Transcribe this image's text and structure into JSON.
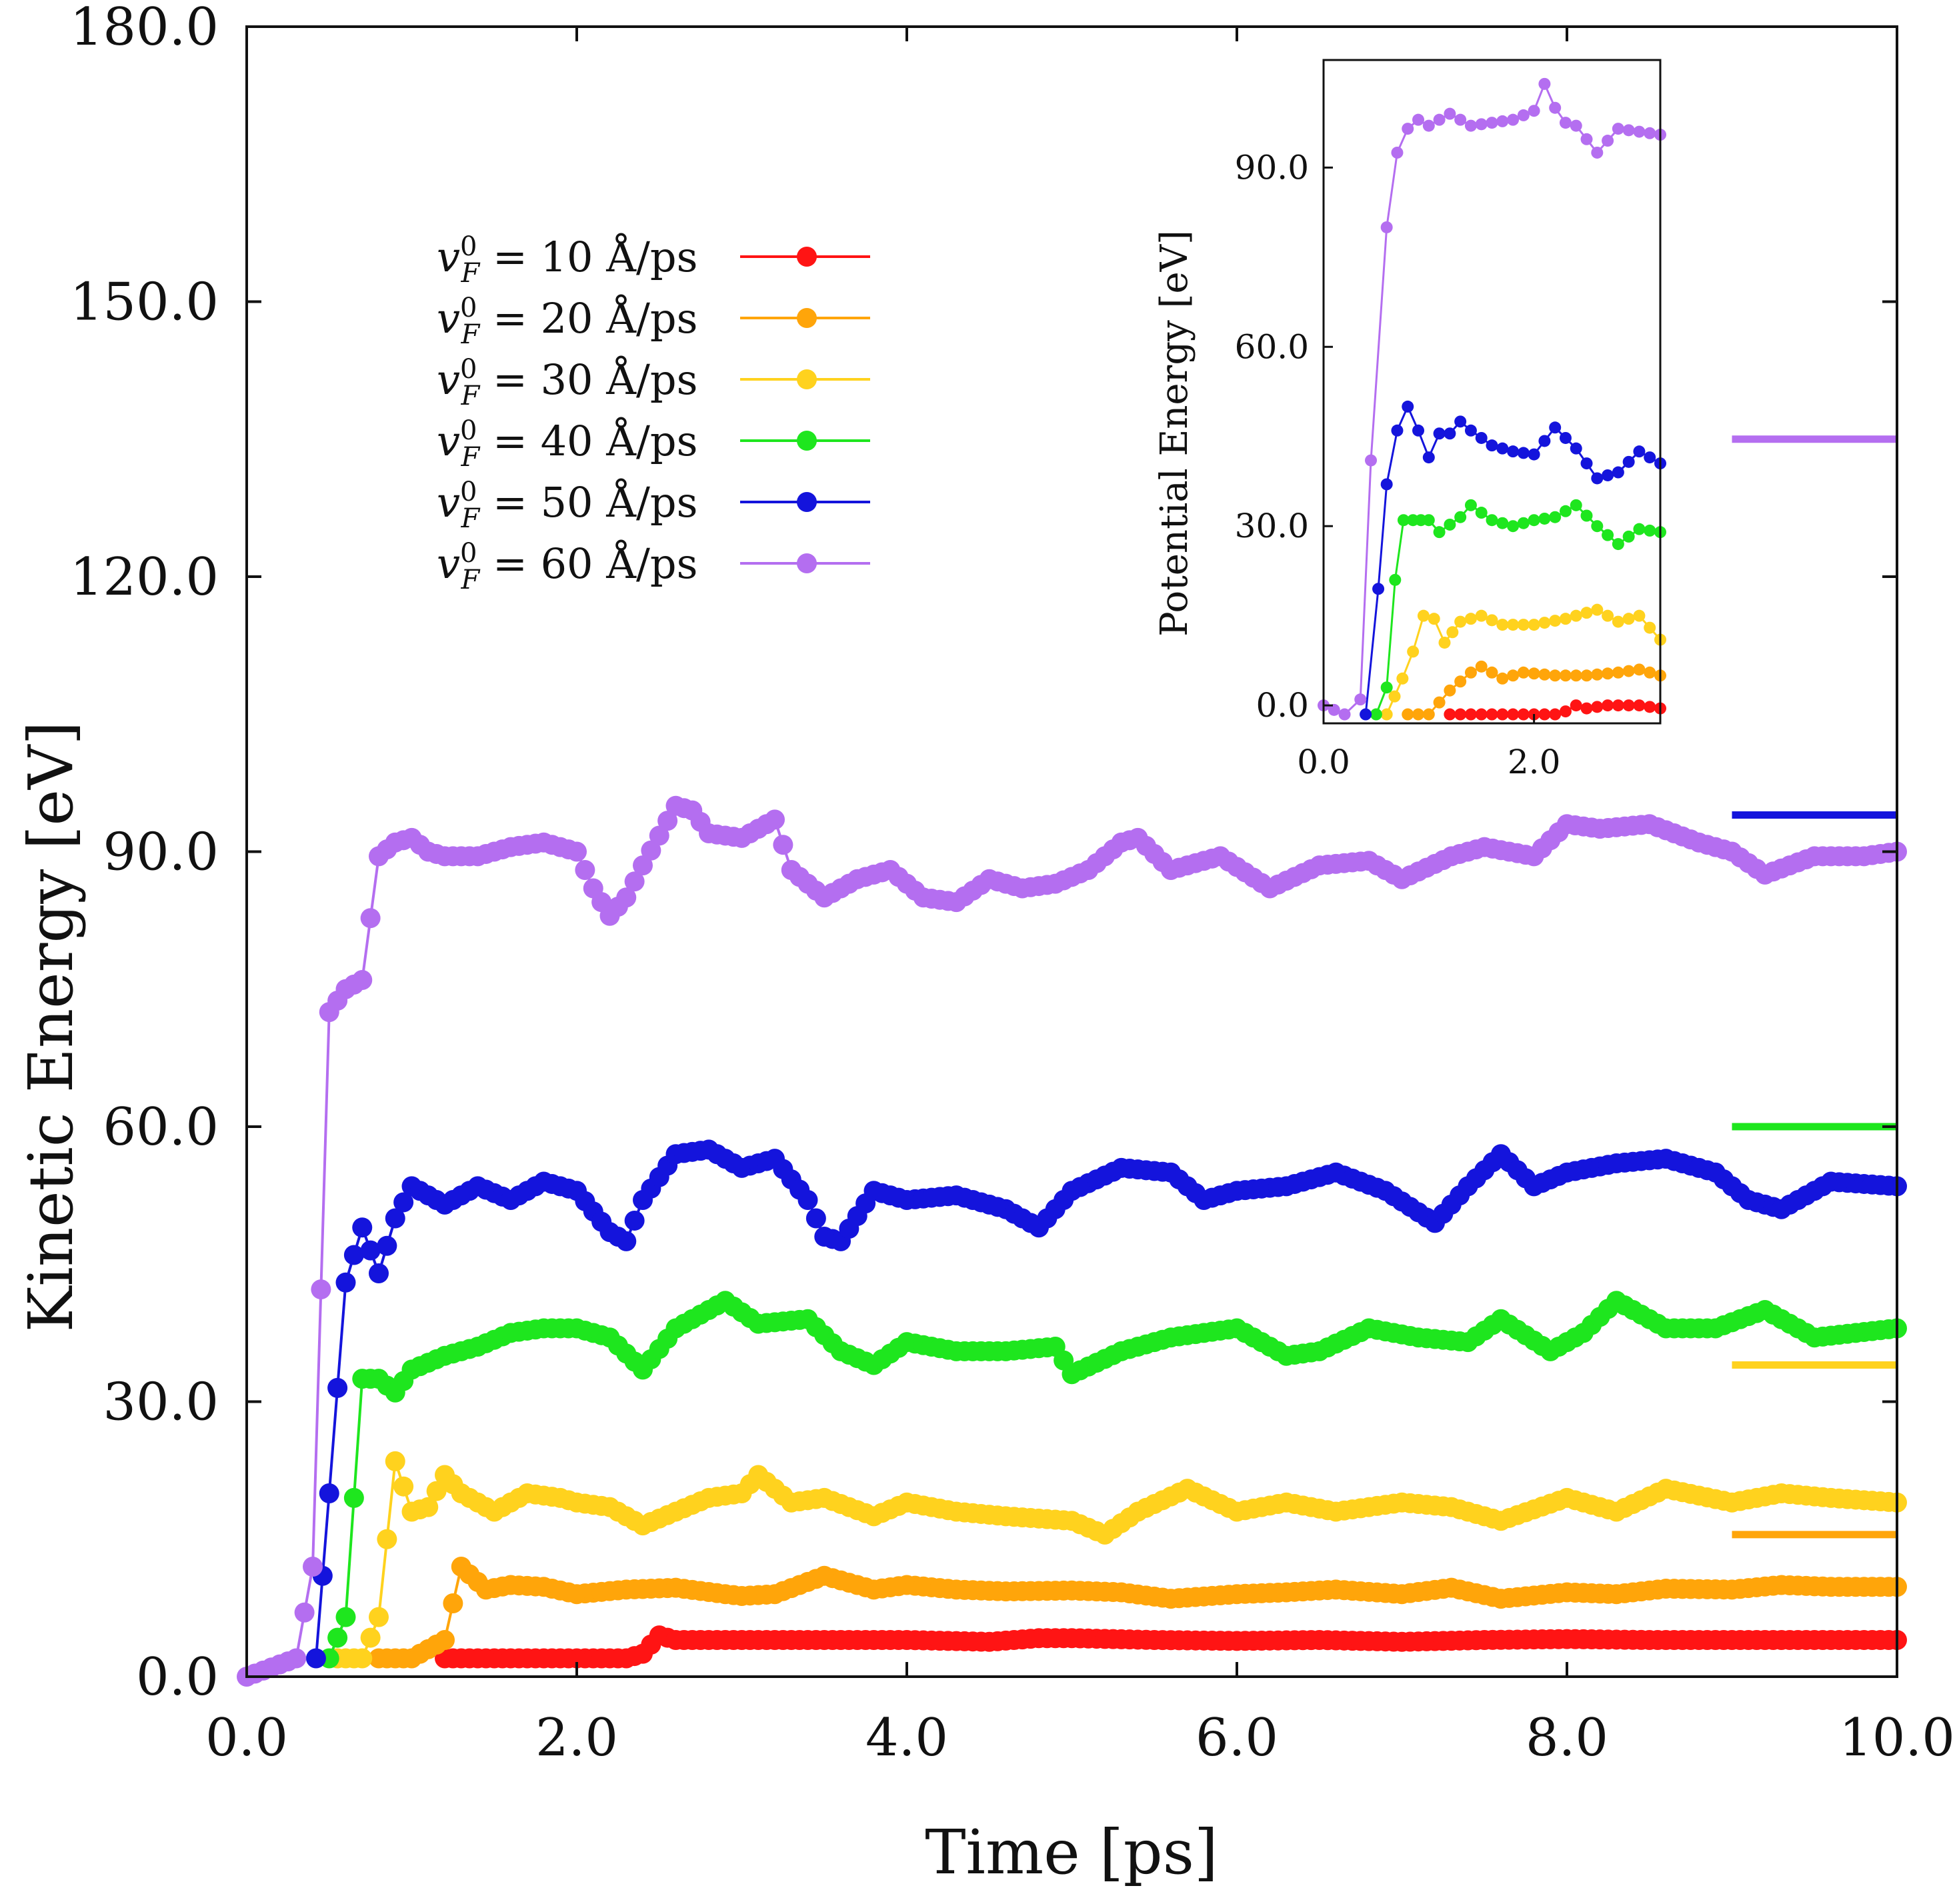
{
  "chart_data": [
    {
      "type": "line",
      "title": "",
      "xlabel": "Time [ps]",
      "ylabel": "Kinetic Energy [eV]",
      "xlim": [
        0,
        10
      ],
      "ylim": [
        0,
        180
      ],
      "xticks": [
        0,
        2,
        4,
        6,
        8,
        10
      ],
      "yticks": [
        0,
        30,
        60,
        90,
        120,
        150,
        180
      ],
      "xtick_labels": [
        "0.0",
        "2.0",
        "4.0",
        "6.0",
        "8.0",
        "10.0"
      ],
      "ytick_labels": [
        "0.0",
        "30.0",
        "60.0",
        "90.0",
        "120.0",
        "150.0",
        "180.0"
      ],
      "legend_position": "upper-left",
      "legend_entries": [
        {
          "symbol": "v",
          "sup": "0",
          "sub": "F",
          "label": " = 10  Å/ps"
        },
        {
          "symbol": "v",
          "sup": "0",
          "sub": "F",
          "label": " = 20  Å/ps"
        },
        {
          "symbol": "v",
          "sup": "0",
          "sub": "F",
          "label": " = 30  Å/ps"
        },
        {
          "symbol": "v",
          "sup": "0",
          "sub": "F",
          "label": " = 40  Å/ps"
        },
        {
          "symbol": "v",
          "sup": "0",
          "sub": "F",
          "label": " = 50  Å/ps"
        },
        {
          "symbol": "v",
          "sup": "0",
          "sub": "F",
          "label": " = 60  Å/ps"
        }
      ],
      "reference_levels": [
        {
          "series": "60 Å/ps",
          "value": 135,
          "x_range": [
            9.0,
            10.0
          ],
          "color": "#b46ef0"
        },
        {
          "series": "50 Å/ps",
          "value": 94,
          "x_range": [
            9.0,
            10.0
          ],
          "color": "#1414dc"
        },
        {
          "series": "40 Å/ps",
          "value": 60,
          "x_range": [
            9.0,
            10.0
          ],
          "color": "#1ee61e"
        },
        {
          "series": "30 Å/ps",
          "value": 34,
          "x_range": [
            9.0,
            10.0
          ],
          "color": "#ffd21e"
        },
        {
          "series": "20 Å/ps",
          "value": 15.5,
          "x_range": [
            9.0,
            10.0
          ],
          "color": "#ffa50a"
        }
      ],
      "series": [
        {
          "name": "10 Å/ps",
          "color": "#ff1414",
          "x": [
            1.2,
            1.5,
            1.8,
            2.0,
            2.3,
            2.4,
            2.5,
            2.6,
            3.0,
            3.5,
            4.0,
            4.5,
            4.8,
            5.0,
            5.5,
            6.0,
            6.5,
            7.0,
            7.5,
            8.0,
            8.5,
            9.0,
            9.5,
            10.0
          ],
          "y": [
            2.0,
            2.0,
            2.0,
            2.0,
            2.0,
            2.5,
            4.5,
            4.0,
            4.0,
            4.0,
            4.0,
            3.8,
            4.2,
            4.2,
            4.0,
            3.9,
            4.0,
            3.8,
            4.0,
            4.1,
            4.0,
            4.0,
            4.0,
            4.0
          ]
        },
        {
          "name": "20 Å/ps",
          "color": "#ffa50a",
          "x": [
            0.8,
            1.0,
            1.2,
            1.3,
            1.45,
            1.6,
            1.8,
            2.0,
            2.3,
            2.6,
            2.9,
            3.0,
            3.2,
            3.5,
            3.8,
            4.0,
            4.3,
            4.6,
            5.0,
            5.3,
            5.6,
            6.0,
            6.3,
            6.6,
            7.0,
            7.3,
            7.6,
            8.0,
            8.3,
            8.6,
            9.0,
            9.3,
            9.6,
            10.0
          ],
          "y": [
            2.0,
            2.0,
            4.0,
            12.0,
            9.5,
            10.0,
            9.8,
            9.0,
            9.5,
            9.7,
            9.0,
            8.8,
            9.0,
            11.0,
            9.5,
            10.0,
            9.5,
            9.3,
            9.4,
            9.2,
            8.5,
            9.0,
            9.2,
            9.5,
            9.0,
            9.7,
            8.5,
            9.2,
            9.0,
            9.6,
            9.5,
            10.0,
            9.8,
            9.8
          ]
        },
        {
          "name": "30 Å/ps",
          "color": "#ffd21e",
          "x": [
            0.55,
            0.7,
            0.8,
            0.9,
            1.0,
            1.1,
            1.2,
            1.3,
            1.5,
            1.7,
            1.9,
            2.0,
            2.2,
            2.4,
            2.6,
            2.8,
            3.0,
            3.1,
            3.3,
            3.5,
            3.8,
            4.0,
            4.3,
            4.6,
            5.0,
            5.2,
            5.4,
            5.7,
            6.0,
            6.3,
            6.6,
            7.0,
            7.3,
            7.6,
            8.0,
            8.3,
            8.6,
            9.0,
            9.3,
            9.6,
            10.0
          ],
          "y": [
            2.0,
            2.0,
            6.5,
            23.5,
            18.0,
            18.5,
            22.0,
            20.0,
            18.0,
            20.0,
            19.5,
            19.0,
            18.5,
            16.5,
            18.0,
            19.5,
            20.0,
            22.0,
            19.0,
            19.5,
            17.5,
            19.0,
            18.0,
            17.5,
            17.0,
            15.5,
            18.0,
            20.5,
            18.0,
            19.0,
            18.0,
            19.0,
            18.5,
            17.0,
            19.5,
            18.0,
            20.5,
            19.0,
            20.0,
            19.5,
            19.0
          ]
        },
        {
          "name": "40 Å/ps",
          "color": "#1ee61e",
          "x": [
            0.5,
            0.6,
            0.7,
            0.8,
            0.9,
            1.0,
            1.2,
            1.4,
            1.6,
            1.8,
            2.0,
            2.2,
            2.4,
            2.6,
            2.9,
            3.1,
            3.4,
            3.6,
            3.8,
            4.0,
            4.3,
            4.6,
            4.9,
            5.0,
            5.3,
            5.6,
            6.0,
            6.3,
            6.5,
            6.8,
            7.1,
            7.4,
            7.6,
            7.9,
            8.1,
            8.3,
            8.6,
            8.9,
            9.2,
            9.5,
            10.0
          ],
          "y": [
            2.0,
            6.5,
            32.5,
            32.5,
            31.0,
            33.5,
            35.0,
            36.0,
            37.5,
            38.0,
            38.0,
            37.0,
            33.5,
            38.0,
            41.0,
            38.5,
            39.0,
            35.5,
            34.0,
            36.5,
            35.5,
            35.5,
            36.0,
            33.0,
            35.5,
            37.0,
            38.0,
            35.0,
            35.5,
            38.0,
            37.0,
            36.5,
            39.0,
            35.5,
            37.5,
            41.0,
            38.0,
            38.0,
            40.0,
            37.0,
            38.0
          ]
        },
        {
          "name": "50 Å/ps",
          "color": "#1414dc",
          "x": [
            0.42,
            0.5,
            0.6,
            0.7,
            0.8,
            0.9,
            1.0,
            1.2,
            1.4,
            1.6,
            1.8,
            2.0,
            2.2,
            2.3,
            2.4,
            2.6,
            2.8,
            3.0,
            3.2,
            3.4,
            3.5,
            3.6,
            3.8,
            4.0,
            4.3,
            4.6,
            4.8,
            5.0,
            5.3,
            5.6,
            5.8,
            6.0,
            6.3,
            6.6,
            6.9,
            7.2,
            7.4,
            7.6,
            7.8,
            8.0,
            8.3,
            8.6,
            8.9,
            9.1,
            9.3,
            9.6,
            10.0
          ],
          "y": [
            2.0,
            20.0,
            43.0,
            49.0,
            44.0,
            50.0,
            53.5,
            51.5,
            53.5,
            52.0,
            54.0,
            53.0,
            48.5,
            47.5,
            52.0,
            57.0,
            57.5,
            55.5,
            56.5,
            52.0,
            48.0,
            47.5,
            53.0,
            52.0,
            52.5,
            51.0,
            49.0,
            53.0,
            55.5,
            55.0,
            52.0,
            53.0,
            53.5,
            55.0,
            53.0,
            49.5,
            53.5,
            57.0,
            53.5,
            55.0,
            56.0,
            56.5,
            55.0,
            52.0,
            51.0,
            54.0,
            53.5
          ]
        },
        {
          "name": "60 Å/ps",
          "color": "#b46ef0",
          "x": [
            0.0,
            0.3,
            0.4,
            0.5,
            0.6,
            0.7,
            0.8,
            0.9,
            1.0,
            1.1,
            1.2,
            1.4,
            1.6,
            1.8,
            2.0,
            2.1,
            2.2,
            2.3,
            2.4,
            2.6,
            2.7,
            2.8,
            3.0,
            3.2,
            3.3,
            3.5,
            3.7,
            3.9,
            4.1,
            4.3,
            4.5,
            4.7,
            4.9,
            5.1,
            5.3,
            5.4,
            5.6,
            5.9,
            6.2,
            6.5,
            6.8,
            7.0,
            7.3,
            7.5,
            7.8,
            8.0,
            8.2,
            8.5,
            8.8,
            9.0,
            9.2,
            9.5,
            9.8,
            10.0
          ],
          "y": [
            0.0,
            2.0,
            12.0,
            72.5,
            75.0,
            76.0,
            89.5,
            91.0,
            91.5,
            90.0,
            89.5,
            89.5,
            90.5,
            91.0,
            90.0,
            86.0,
            83.0,
            85.0,
            88.5,
            95.0,
            94.5,
            92.0,
            91.5,
            93.5,
            88.0,
            85.0,
            87.0,
            88.0,
            85.0,
            84.5,
            87.0,
            86.0,
            86.5,
            88.0,
            91.0,
            91.5,
            88.0,
            89.5,
            86.0,
            88.5,
            89.0,
            87.0,
            89.5,
            90.5,
            89.5,
            93.0,
            92.5,
            93.0,
            91.0,
            90.0,
            87.5,
            89.5,
            89.5,
            90.0
          ]
        }
      ]
    },
    {
      "type": "line",
      "title": "",
      "xlabel": "",
      "ylabel": "Potential Energy [eV]",
      "xlim": [
        0,
        3.2
      ],
      "ylim": [
        -3,
        108
      ],
      "xticks": [
        0,
        2
      ],
      "yticks": [
        0,
        30,
        60,
        90
      ],
      "xtick_labels": [
        "0.0",
        "2.0"
      ],
      "ytick_labels": [
        "0.0",
        "30.0",
        "60.0",
        "90.0"
      ],
      "position": "inset upper-right",
      "series": [
        {
          "name": "10 Å/ps",
          "color": "#ff1414",
          "x": [
            1.2,
            1.5,
            1.8,
            2.0,
            2.2,
            2.3,
            2.4,
            2.5,
            2.7,
            3.0,
            3.2
          ],
          "y": [
            -1.5,
            -1.5,
            -1.5,
            -1.5,
            -1.5,
            -1.0,
            0.0,
            -0.5,
            0.0,
            0.0,
            -0.5
          ]
        },
        {
          "name": "20 Å/ps",
          "color": "#ffa50a",
          "x": [
            0.8,
            1.0,
            1.2,
            1.3,
            1.4,
            1.5,
            1.7,
            1.9,
            2.2,
            2.5,
            2.8,
            3.0,
            3.2
          ],
          "y": [
            -1.5,
            -1.5,
            2.5,
            4.0,
            5.5,
            6.5,
            4.5,
            5.5,
            5.0,
            5.0,
            5.5,
            6.0,
            5.0
          ]
        },
        {
          "name": "30 Å/ps",
          "color": "#ffd21e",
          "x": [
            0.6,
            0.75,
            0.85,
            0.95,
            1.05,
            1.15,
            1.3,
            1.5,
            1.7,
            2.0,
            2.3,
            2.6,
            2.8,
            3.0,
            3.2
          ],
          "y": [
            -1.5,
            4.5,
            9.0,
            15.0,
            14.5,
            10.5,
            14.0,
            15.0,
            13.5,
            13.5,
            14.5,
            16.0,
            14.0,
            15.0,
            11.0
          ]
        },
        {
          "name": "40 Å/ps",
          "color": "#1ee61e",
          "x": [
            0.5,
            0.6,
            0.68,
            0.76,
            0.85,
            1.0,
            1.1,
            1.3,
            1.4,
            1.6,
            1.8,
            2.0,
            2.2,
            2.4,
            2.6,
            2.8,
            3.0,
            3.2
          ],
          "y": [
            -1.5,
            3.0,
            21.0,
            31.0,
            31.0,
            31.0,
            29.0,
            31.5,
            33.5,
            31.0,
            30.0,
            31.0,
            31.5,
            33.5,
            30.0,
            27.0,
            29.5,
            29.0
          ]
        },
        {
          "name": "50 Å/ps",
          "color": "#1414dc",
          "x": [
            0.4,
            0.52,
            0.6,
            0.7,
            0.8,
            0.9,
            1.0,
            1.1,
            1.2,
            1.3,
            1.4,
            1.6,
            1.8,
            2.0,
            2.2,
            2.4,
            2.6,
            2.8,
            3.0,
            3.2
          ],
          "y": [
            -1.5,
            19.5,
            37.0,
            46.0,
            50.0,
            46.0,
            41.5,
            45.5,
            45.5,
            47.5,
            46.0,
            43.5,
            42.5,
            42.0,
            46.5,
            43.0,
            38.0,
            39.0,
            42.5,
            40.5
          ]
        },
        {
          "name": "60 Å/ps",
          "color": "#b46ef0",
          "x": [
            0.0,
            0.2,
            0.35,
            0.45,
            0.6,
            0.7,
            0.8,
            0.9,
            1.0,
            1.2,
            1.4,
            1.6,
            1.8,
            2.0,
            2.1,
            2.2,
            2.3,
            2.4,
            2.6,
            2.8,
            3.0,
            3.2
          ],
          "y": [
            0.0,
            -1.5,
            1.0,
            41.0,
            80.0,
            92.5,
            96.5,
            98.0,
            97.0,
            99.0,
            97.0,
            97.5,
            98.0,
            99.5,
            104.0,
            100.0,
            97.5,
            97.0,
            92.5,
            96.5,
            96.0,
            95.5
          ]
        }
      ]
    }
  ]
}
